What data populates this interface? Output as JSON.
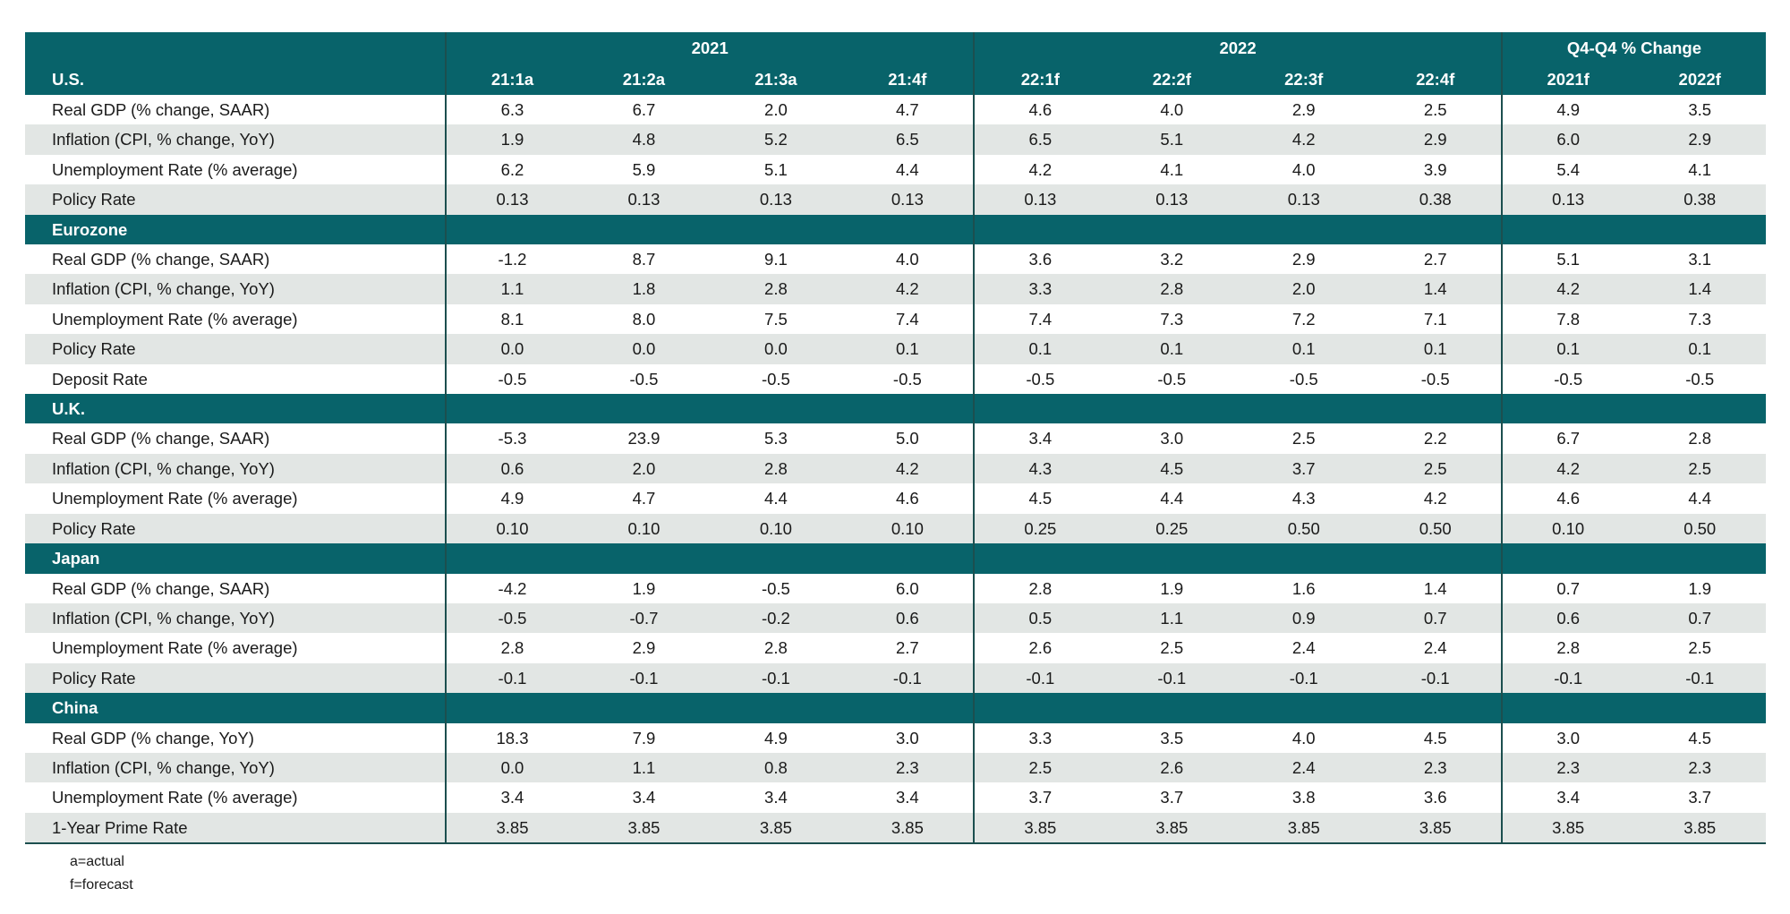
{
  "header": {
    "groups": [
      "2021",
      "2022",
      "Q4-Q4 % Change"
    ],
    "region_label": "U.S.",
    "columns": [
      "21:1a",
      "21:2a",
      "21:3a",
      "21:4f",
      "22:1f",
      "22:2f",
      "22:3f",
      "22:4f",
      "2021f",
      "2022f"
    ]
  },
  "sections": [
    {
      "rows": [
        {
          "label": "Real GDP (% change, SAAR)",
          "values": [
            "6.3",
            "6.7",
            "2.0",
            "4.7",
            "4.6",
            "4.0",
            "2.9",
            "2.5",
            "4.9",
            "3.5"
          ]
        },
        {
          "label": "Inflation (CPI, % change, YoY)",
          "values": [
            "1.9",
            "4.8",
            "5.2",
            "6.5",
            "6.5",
            "5.1",
            "4.2",
            "2.9",
            "6.0",
            "2.9"
          ]
        },
        {
          "label": "Unemployment Rate (% average)",
          "values": [
            "6.2",
            "5.9",
            "5.1",
            "4.4",
            "4.2",
            "4.1",
            "4.0",
            "3.9",
            "5.4",
            "4.1"
          ]
        },
        {
          "label": "Policy Rate",
          "values": [
            "0.13",
            "0.13",
            "0.13",
            "0.13",
            "0.13",
            "0.13",
            "0.13",
            "0.38",
            "0.13",
            "0.38"
          ]
        }
      ]
    },
    {
      "title": "Eurozone",
      "rows": [
        {
          "label": "Real GDP (% change, SAAR)",
          "values": [
            "-1.2",
            "8.7",
            "9.1",
            "4.0",
            "3.6",
            "3.2",
            "2.9",
            "2.7",
            "5.1",
            "3.1"
          ]
        },
        {
          "label": "Inflation (CPI, % change, YoY)",
          "values": [
            "1.1",
            "1.8",
            "2.8",
            "4.2",
            "3.3",
            "2.8",
            "2.0",
            "1.4",
            "4.2",
            "1.4"
          ]
        },
        {
          "label": "Unemployment Rate (% average)",
          "values": [
            "8.1",
            "8.0",
            "7.5",
            "7.4",
            "7.4",
            "7.3",
            "7.2",
            "7.1",
            "7.8",
            "7.3"
          ]
        },
        {
          "label": "Policy Rate",
          "values": [
            "0.0",
            "0.0",
            "0.0",
            "0.1",
            "0.1",
            "0.1",
            "0.1",
            "0.1",
            "0.1",
            "0.1"
          ]
        },
        {
          "label": "Deposit Rate",
          "values": [
            "-0.5",
            "-0.5",
            "-0.5",
            "-0.5",
            "-0.5",
            "-0.5",
            "-0.5",
            "-0.5",
            "-0.5",
            "-0.5"
          ]
        }
      ]
    },
    {
      "title": "U.K.",
      "rows": [
        {
          "label": "Real GDP (% change, SAAR)",
          "values": [
            "-5.3",
            "23.9",
            "5.3",
            "5.0",
            "3.4",
            "3.0",
            "2.5",
            "2.2",
            "6.7",
            "2.8"
          ]
        },
        {
          "label": "Inflation (CPI, % change, YoY)",
          "values": [
            "0.6",
            "2.0",
            "2.8",
            "4.2",
            "4.3",
            "4.5",
            "3.7",
            "2.5",
            "4.2",
            "2.5"
          ]
        },
        {
          "label": "Unemployment Rate (% average)",
          "values": [
            "4.9",
            "4.7",
            "4.4",
            "4.6",
            "4.5",
            "4.4",
            "4.3",
            "4.2",
            "4.6",
            "4.4"
          ]
        },
        {
          "label": "Policy Rate",
          "values": [
            "0.10",
            "0.10",
            "0.10",
            "0.10",
            "0.25",
            "0.25",
            "0.50",
            "0.50",
            "0.10",
            "0.50"
          ]
        }
      ]
    },
    {
      "title": "Japan",
      "rows": [
        {
          "label": "Real GDP (% change, SAAR)",
          "values": [
            "-4.2",
            "1.9",
            "-0.5",
            "6.0",
            "2.8",
            "1.9",
            "1.6",
            "1.4",
            "0.7",
            "1.9"
          ]
        },
        {
          "label": "Inflation (CPI, % change, YoY)",
          "values": [
            "-0.5",
            "-0.7",
            "-0.2",
            "0.6",
            "0.5",
            "1.1",
            "0.9",
            "0.7",
            "0.6",
            "0.7"
          ]
        },
        {
          "label": "Unemployment Rate (% average)",
          "values": [
            "2.8",
            "2.9",
            "2.8",
            "2.7",
            "2.6",
            "2.5",
            "2.4",
            "2.4",
            "2.8",
            "2.5"
          ]
        },
        {
          "label": "Policy Rate",
          "values": [
            "-0.1",
            "-0.1",
            "-0.1",
            "-0.1",
            "-0.1",
            "-0.1",
            "-0.1",
            "-0.1",
            "-0.1",
            "-0.1"
          ]
        }
      ]
    },
    {
      "title": "China",
      "rows": [
        {
          "label": "Real GDP (% change, YoY)",
          "values": [
            "18.3",
            "7.9",
            "4.9",
            "3.0",
            "3.3",
            "3.5",
            "4.0",
            "4.5",
            "3.0",
            "4.5"
          ]
        },
        {
          "label": "Inflation (CPI, % change, YoY)",
          "values": [
            "0.0",
            "1.1",
            "0.8",
            "2.3",
            "2.5",
            "2.6",
            "2.4",
            "2.3",
            "2.3",
            "2.3"
          ]
        },
        {
          "label": "Unemployment Rate (% average)",
          "values": [
            "3.4",
            "3.4",
            "3.4",
            "3.4",
            "3.7",
            "3.7",
            "3.8",
            "3.6",
            "3.4",
            "3.7"
          ]
        },
        {
          "label": "1-Year Prime Rate",
          "values": [
            "3.85",
            "3.85",
            "3.85",
            "3.85",
            "3.85",
            "3.85",
            "3.85",
            "3.85",
            "3.85",
            "3.85"
          ]
        }
      ]
    }
  ],
  "footnotes": [
    "a=actual",
    "f=forecast"
  ]
}
